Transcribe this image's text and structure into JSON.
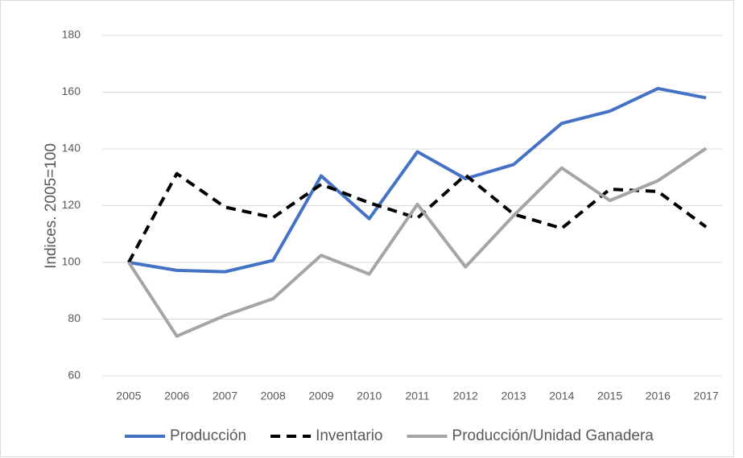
{
  "chart_data": {
    "type": "line",
    "y_label": "Indices. 2005=100",
    "categories": [
      "2005",
      "2006",
      "2007",
      "2008",
      "2009",
      "2010",
      "2011",
      "2012",
      "2013",
      "2014",
      "2015",
      "2016",
      "2017"
    ],
    "series": [
      {
        "name": "Producción",
        "color": "#4472c4",
        "dash": false,
        "values": [
          100,
          97.2,
          96.7,
          100.7,
          130.5,
          115.4,
          139,
          129.5,
          134.5,
          149,
          153.3,
          161.3,
          158
        ]
      },
      {
        "name": "Inventario",
        "color": "#000000",
        "dash": true,
        "values": [
          100,
          131.3,
          119.5,
          115.8,
          127.5,
          121,
          115.6,
          130.8,
          117,
          112,
          125.8,
          125,
          112.5
        ]
      },
      {
        "name": "Producción/Unidad Ganadera",
        "color": "#a5a5a5",
        "dash": false,
        "values": [
          100,
          74,
          81.3,
          87.2,
          102.5,
          95.9,
          120.5,
          98.4,
          116.5,
          133.3,
          121.8,
          128.8,
          140.2
        ]
      }
    ],
    "ylim": [
      60,
      180
    ],
    "yticks": [
      60,
      80,
      100,
      120,
      140,
      160,
      180
    ],
    "grid": true,
    "legend": "bottom"
  }
}
